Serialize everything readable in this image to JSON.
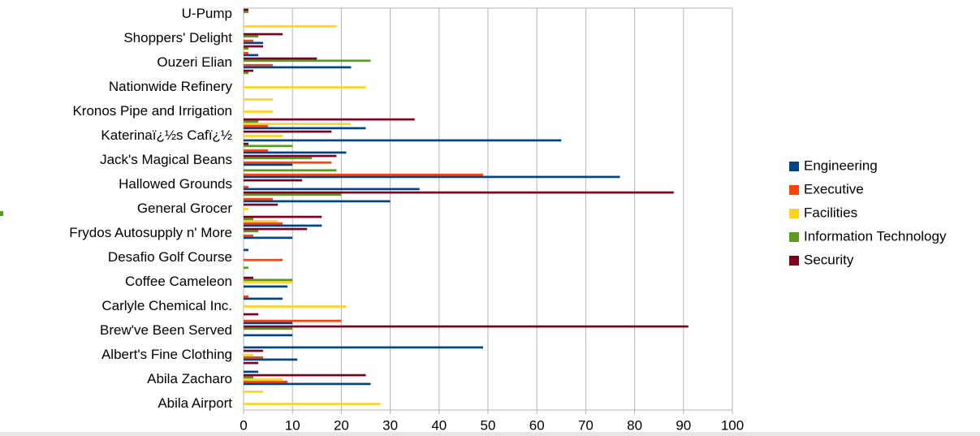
{
  "chart_data": {
    "type": "hbar",
    "categories": [
      "U-Pump",
      null,
      "Shoppers' Delight",
      null,
      "Ouzeri Elian",
      null,
      "Nationwide Refinery",
      null,
      "Kronos Pipe and Irrigation",
      null,
      "Katerinaï¿½s Cafï¿½",
      null,
      "Jack's Magical Beans",
      null,
      "Hallowed Grounds",
      null,
      "General Grocer",
      null,
      "Frydos Autosupply n' More",
      null,
      "Desafio Golf Course",
      null,
      "Coffee Cameleon",
      null,
      "Carlyle Chemical Inc.",
      null,
      "Brew've Been Served",
      null,
      "Albert's Fine Clothing",
      null,
      "Abila Zacharo",
      null,
      "Abila Airport"
    ],
    "series": [
      {
        "name": "Engineering",
        "color": "#004586",
        "values": [
          0,
          0,
          4,
          3,
          22,
          0,
          0,
          0,
          0,
          25,
          65,
          21,
          10,
          77,
          36,
          30,
          0,
          16,
          10,
          1,
          0,
          0,
          9,
          8,
          0,
          10,
          10,
          49,
          11,
          3,
          26,
          0,
          0
        ]
      },
      {
        "name": "Executive",
        "color": "#ff420e",
        "values": [
          0,
          0,
          2,
          1,
          6,
          0,
          0,
          0,
          0,
          5,
          0,
          5,
          18,
          49,
          1,
          6,
          0,
          8,
          2,
          0,
          8,
          0,
          0,
          1,
          0,
          20,
          0,
          0,
          4,
          0,
          9,
          0,
          0
        ]
      },
      {
        "name": "Facilities",
        "color": "#ffd320",
        "values": [
          0,
          19,
          0,
          0,
          0,
          0,
          25,
          6,
          6,
          22,
          8,
          0,
          0,
          0,
          0,
          0,
          1,
          7,
          0,
          0,
          0,
          0,
          10,
          0,
          21,
          0,
          0,
          0,
          2,
          0,
          8,
          4,
          28
        ]
      },
      {
        "name": "Information Technology",
        "color": "#579d1c",
        "values": [
          1,
          0,
          3,
          1,
          26,
          1,
          0,
          0,
          0,
          3,
          0,
          10,
          14,
          19,
          0,
          20,
          0,
          2,
          3,
          0,
          0,
          1,
          10,
          0,
          0,
          0,
          10,
          0,
          0,
          0,
          2,
          0,
          0
        ]
      },
      {
        "name": "Security",
        "color": "#7e0021",
        "values": [
          1,
          0,
          8,
          4,
          15,
          2,
          0,
          0,
          0,
          35,
          18,
          1,
          19,
          0,
          12,
          88,
          7,
          16,
          13,
          0,
          0,
          0,
          2,
          0,
          0,
          3,
          91,
          0,
          4,
          3,
          25,
          0,
          0
        ]
      }
    ],
    "xlim": [
      0,
      100
    ],
    "xticks": [
      0,
      10,
      20,
      30,
      40,
      50,
      60,
      70,
      80,
      90,
      100
    ],
    "grid": true,
    "legend": "right"
  }
}
